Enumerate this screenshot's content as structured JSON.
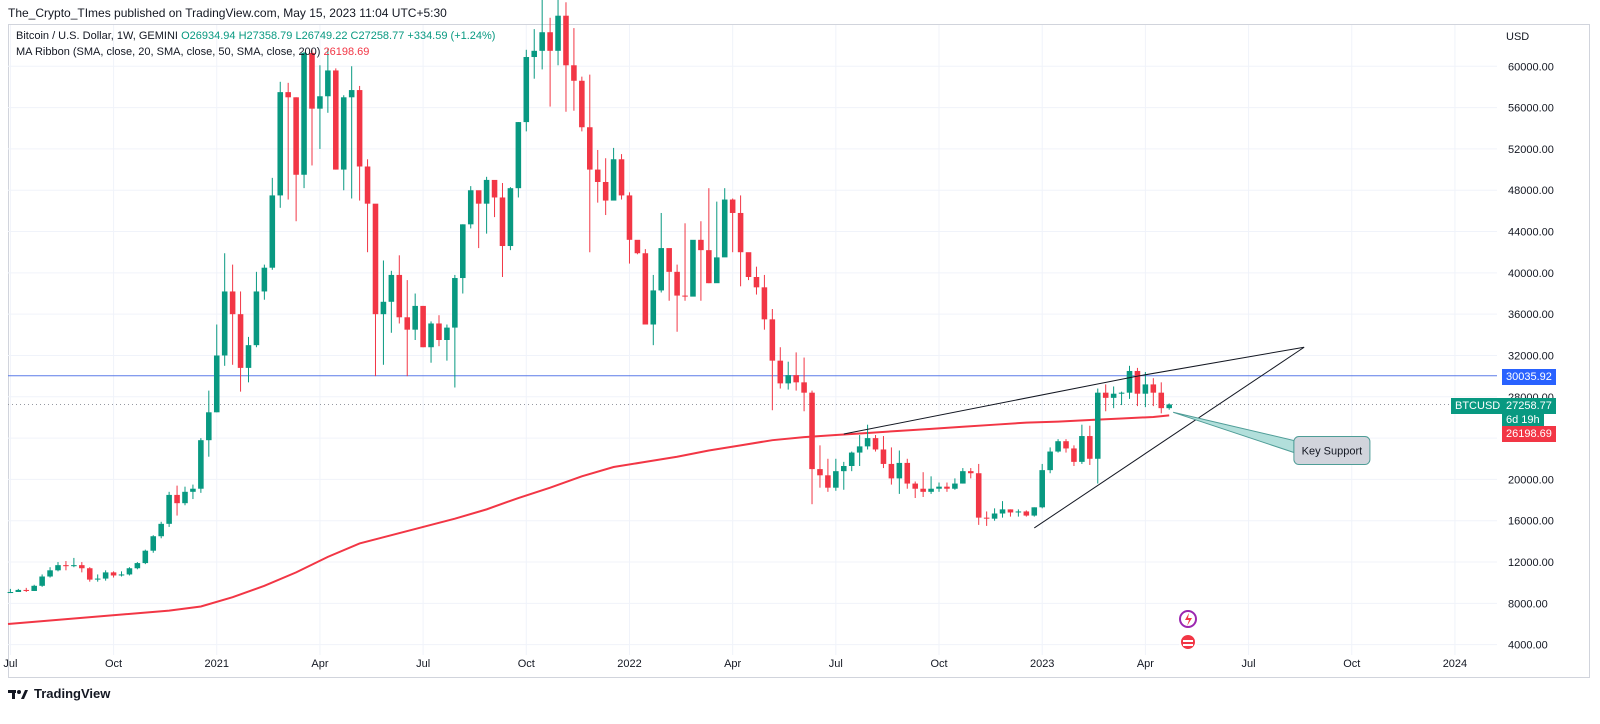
{
  "header": {
    "publisher": "The_Crypto_TImes published on TradingView.com, May 15, 2023 11:04 UTC+5:30"
  },
  "legend": {
    "symbol": "Bitcoin / U.S. Dollar, 1W, GEMINI",
    "open": "O26934.94",
    "high": "H27358.79",
    "low": "L26749.22",
    "close": "C27258.77",
    "change": "+334.59 (+1.24%)",
    "ma_label": "MA Ribbon (SMA, close, 20, SMA, close, 50, SMA, close, 200)",
    "ma_value": "26198.69"
  },
  "footer": {
    "brand": "TradingView"
  },
  "colors": {
    "up": "#089981",
    "down": "#f23645",
    "ma": "#f23645",
    "hline": "#5b7be8"
  },
  "chart_data": {
    "type": "candlestick",
    "title": "Bitcoin / U.S. Dollar, 1W, GEMINI",
    "currency_label": "USD",
    "ylim": [
      3000,
      64000
    ],
    "y_ticks": [
      "4000.00",
      "8000.00",
      "12000.00",
      "16000.00",
      "20000.00",
      "24000.00",
      "28000.00",
      "32000.00",
      "36000.00",
      "40000.00",
      "44000.00",
      "48000.00",
      "52000.00",
      "56000.00",
      "60000.00"
    ],
    "y_tick_values": [
      4000,
      8000,
      12000,
      16000,
      20000,
      24000,
      28000,
      32000,
      36000,
      40000,
      44000,
      48000,
      52000,
      56000,
      60000
    ],
    "x_ticks": [
      {
        "label": "Jul",
        "t": 0
      },
      {
        "label": "Oct",
        "t": 13
      },
      {
        "label": "2021",
        "t": 26
      },
      {
        "label": "Apr",
        "t": 39
      },
      {
        "label": "Jul",
        "t": 52
      },
      {
        "label": "Oct",
        "t": 65
      },
      {
        "label": "2022",
        "t": 78
      },
      {
        "label": "Apr",
        "t": 91
      },
      {
        "label": "Jul",
        "t": 104
      },
      {
        "label": "Oct",
        "t": 117
      },
      {
        "label": "2023",
        "t": 130
      },
      {
        "label": "Apr",
        "t": 143
      },
      {
        "label": "Jul",
        "t": 156
      },
      {
        "label": "Oct",
        "t": 169
      },
      {
        "label": "2024",
        "t": 182
      }
    ],
    "t_range": [
      -0.3,
      187.3
    ],
    "closes": [
      9100,
      9300,
      9200,
      9700,
      10600,
      11200,
      11700,
      11600,
      11700,
      11400,
      10300,
      10400,
      11000,
      10700,
      10800,
      11400,
      11900,
      13100,
      14500,
      15700,
      18500,
      17700,
      18800,
      19100,
      23800,
      26500,
      32000,
      38200,
      36000,
      30800,
      33000,
      38200,
      40500,
      47500,
      57500,
      57000,
      49500,
      61300,
      55900,
      57100,
      59600,
      50000,
      57000,
      57700,
      50300,
      46700,
      36000,
      37200,
      39800,
      35700,
      34500,
      36800,
      32800,
      35100,
      33500,
      34700,
      39500,
      44700,
      48000,
      46700,
      49000,
      47300,
      42600,
      48200,
      54600,
      60900,
      61500,
      63300,
      61500,
      64900,
      60100,
      58600,
      54100,
      50000,
      48800,
      47000,
      51000,
      47500,
      43200,
      41900,
      35000,
      38300,
      42400,
      40100,
      37800,
      37700,
      43200,
      42200,
      39000,
      41500,
      47100,
      45800,
      42000,
      39600,
      38600,
      35500,
      31500,
      29300,
      30100,
      29400,
      28400,
      21000,
      20400,
      19200,
      20800,
      21300,
      22600,
      23200,
      24000,
      22900,
      21500,
      20100,
      21600,
      19600,
      19100,
      18800,
      19100,
      19300,
      19100,
      19600,
      20800,
      20600,
      16300,
      16200,
      16700,
      17100,
      16800,
      16900,
      16500,
      17300,
      20900,
      22700,
      23700,
      23000,
      21700,
      24200,
      22000,
      28400,
      27900,
      28300,
      28400,
      30500,
      28300,
      29200,
      28400,
      26900,
      27259
    ],
    "wicks": [
      [
        9000,
        9400
      ],
      [
        9100,
        9400
      ],
      [
        9100,
        9500
      ],
      [
        9200,
        9800
      ],
      [
        9600,
        10800
      ],
      [
        10500,
        11500
      ],
      [
        11100,
        12000
      ],
      [
        11200,
        12100
      ],
      [
        11500,
        12400
      ],
      [
        11000,
        12000
      ],
      [
        10100,
        11500
      ],
      [
        10100,
        10800
      ],
      [
        10200,
        11200
      ],
      [
        10500,
        11100
      ],
      [
        10600,
        11100
      ],
      [
        10700,
        11500
      ],
      [
        11300,
        12000
      ],
      [
        11800,
        13200
      ],
      [
        12900,
        14600
      ],
      [
        14300,
        15900
      ],
      [
        15400,
        18800
      ],
      [
        16500,
        19400
      ],
      [
        17500,
        19300
      ],
      [
        18100,
        19500
      ],
      [
        18700,
        24000
      ],
      [
        22200,
        28600
      ],
      [
        26500,
        35000
      ],
      [
        31000,
        41900
      ],
      [
        31100,
        40800
      ],
      [
        28500,
        38200
      ],
      [
        29400,
        33800
      ],
      [
        32800,
        40100
      ],
      [
        37400,
        40800
      ],
      [
        40300,
        49200
      ],
      [
        46300,
        58500
      ],
      [
        47100,
        58400
      ],
      [
        45000,
        57000
      ],
      [
        48200,
        61400
      ],
      [
        50400,
        61700
      ],
      [
        52000,
        60100
      ],
      [
        55500,
        61700
      ],
      [
        50000,
        59800
      ],
      [
        48000,
        57200
      ],
      [
        47200,
        60000
      ],
      [
        47000,
        58100
      ],
      [
        42000,
        51000
      ],
      [
        30000,
        46500
      ],
      [
        31100,
        41200
      ],
      [
        34200,
        40200
      ],
      [
        35100,
        41700
      ],
      [
        30000,
        39300
      ],
      [
        33500,
        38000
      ],
      [
        32800,
        36800
      ],
      [
        31300,
        35300
      ],
      [
        32900,
        35900
      ],
      [
        31500,
        35000
      ],
      [
        28900,
        39800
      ],
      [
        38000,
        44700
      ],
      [
        44300,
        48400
      ],
      [
        42400,
        47900
      ],
      [
        43800,
        49300
      ],
      [
        45400,
        48200
      ],
      [
        39600,
        48700
      ],
      [
        42200,
        48300
      ],
      [
        47300,
        54600
      ],
      [
        53700,
        61600
      ],
      [
        58800,
        63600
      ],
      [
        59700,
        66700
      ],
      [
        56100,
        64700
      ],
      [
        60100,
        69000
      ],
      [
        55600,
        66200
      ],
      [
        55700,
        63700
      ],
      [
        53700,
        59000
      ],
      [
        42000,
        59200
      ],
      [
        46800,
        51900
      ],
      [
        45600,
        51100
      ],
      [
        48800,
        52100
      ],
      [
        47100,
        51500
      ],
      [
        40900,
        47800
      ],
      [
        41800,
        42700
      ],
      [
        35400,
        42300
      ],
      [
        33000,
        39800
      ],
      [
        38100,
        45800
      ],
      [
        37300,
        42100
      ],
      [
        34300,
        40800
      ],
      [
        37300,
        44800
      ],
      [
        38100,
        42400
      ],
      [
        37300,
        45000
      ],
      [
        39000,
        48200
      ],
      [
        39100,
        46900
      ],
      [
        44600,
        48200
      ],
      [
        42000,
        47200
      ],
      [
        38700,
        47500
      ],
      [
        39300,
        41900
      ],
      [
        37900,
        40600
      ],
      [
        34500,
        39800
      ],
      [
        26700,
        36500
      ],
      [
        28800,
        32800
      ],
      [
        28700,
        31400
      ],
      [
        28600,
        32300
      ],
      [
        26600,
        31800
      ],
      [
        17600,
        28600
      ],
      [
        19200,
        23300
      ],
      [
        18800,
        22000
      ],
      [
        18900,
        22000
      ],
      [
        19000,
        21700
      ],
      [
        20800,
        22700
      ],
      [
        21300,
        24300
      ],
      [
        22900,
        25300
      ],
      [
        22700,
        24300
      ],
      [
        21100,
        24200
      ],
      [
        19500,
        23100
      ],
      [
        18600,
        22800
      ],
      [
        19100,
        22000
      ],
      [
        18200,
        19800
      ],
      [
        18300,
        20700
      ],
      [
        18600,
        20300
      ],
      [
        18800,
        19700
      ],
      [
        18800,
        19700
      ],
      [
        19000,
        20100
      ],
      [
        19600,
        21100
      ],
      [
        20100,
        21100
      ],
      [
        15600,
        21500
      ],
      [
        15500,
        16900
      ],
      [
        16000,
        17200
      ],
      [
        16300,
        17900
      ],
      [
        16400,
        17100
      ],
      [
        16400,
        17100
      ],
      [
        16400,
        17000
      ],
      [
        16400,
        17300
      ],
      [
        17200,
        21500
      ],
      [
        20600,
        23100
      ],
      [
        22600,
        23900
      ],
      [
        22600,
        23900
      ],
      [
        21300,
        23300
      ],
      [
        21500,
        25300
      ],
      [
        21400,
        25200
      ],
      [
        19600,
        28800
      ],
      [
        26600,
        29200
      ],
      [
        26900,
        29000
      ],
      [
        27200,
        28500
      ],
      [
        27800,
        31000
      ],
      [
        27100,
        30800
      ],
      [
        27000,
        30400
      ],
      [
        27100,
        29800
      ],
      [
        26400,
        29400
      ],
      [
        26749,
        27359
      ]
    ],
    "ma_value": 26198.69,
    "ma_series": [
      [
        -0.3,
        6000
      ],
      [
        20,
        7300
      ],
      [
        24,
        7700
      ],
      [
        28,
        8600
      ],
      [
        32,
        9700
      ],
      [
        36,
        11000
      ],
      [
        40,
        12500
      ],
      [
        44,
        13800
      ],
      [
        48,
        14600
      ],
      [
        52,
        15400
      ],
      [
        56,
        16200
      ],
      [
        60,
        17100
      ],
      [
        64,
        18200
      ],
      [
        68,
        19200
      ],
      [
        72,
        20300
      ],
      [
        76,
        21200
      ],
      [
        80,
        21700
      ],
      [
        84,
        22200
      ],
      [
        88,
        22800
      ],
      [
        92,
        23300
      ],
      [
        96,
        23800
      ],
      [
        100,
        24100
      ],
      [
        104,
        24300
      ],
      [
        108,
        24500
      ],
      [
        112,
        24700
      ],
      [
        116,
        24900
      ],
      [
        120,
        25100
      ],
      [
        124,
        25300
      ],
      [
        128,
        25500
      ],
      [
        132,
        25600
      ],
      [
        136,
        25750
      ],
      [
        140,
        25900
      ],
      [
        144,
        26050
      ],
      [
        146,
        26199
      ]
    ],
    "trendlines": [
      {
        "from": [
          105,
          24400
        ],
        "to": [
          142,
          30000
        ]
      },
      {
        "from": [
          142,
          30000
        ],
        "to": [
          163,
          32800
        ]
      },
      {
        "from": [
          129,
          15300
        ],
        "to": [
          163,
          32800
        ]
      }
    ],
    "hline": 30035.92,
    "price_labels": {
      "ticker": "BTCUSD",
      "price": "27258.77",
      "countdown": "6d 19h",
      "level": "30035.92",
      "ma": "26198.69"
    },
    "annotation": {
      "text": "Key Support",
      "at": [
        146.5,
        26500
      ],
      "box": [
        166.5,
        22800
      ]
    }
  }
}
